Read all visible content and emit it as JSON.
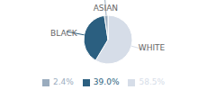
{
  "chart_data": {
    "type": "pie",
    "categories": [
      "WHITE",
      "BLACK",
      "ASIAN"
    ],
    "values": [
      58.5,
      39.0,
      2.4
    ],
    "value_labels": [
      "58.5%",
      "39.0%",
      "2.4%"
    ],
    "colors": [
      "#d6dde8",
      "#2b5f80",
      "#9aacbe"
    ],
    "legend": "bottom"
  }
}
